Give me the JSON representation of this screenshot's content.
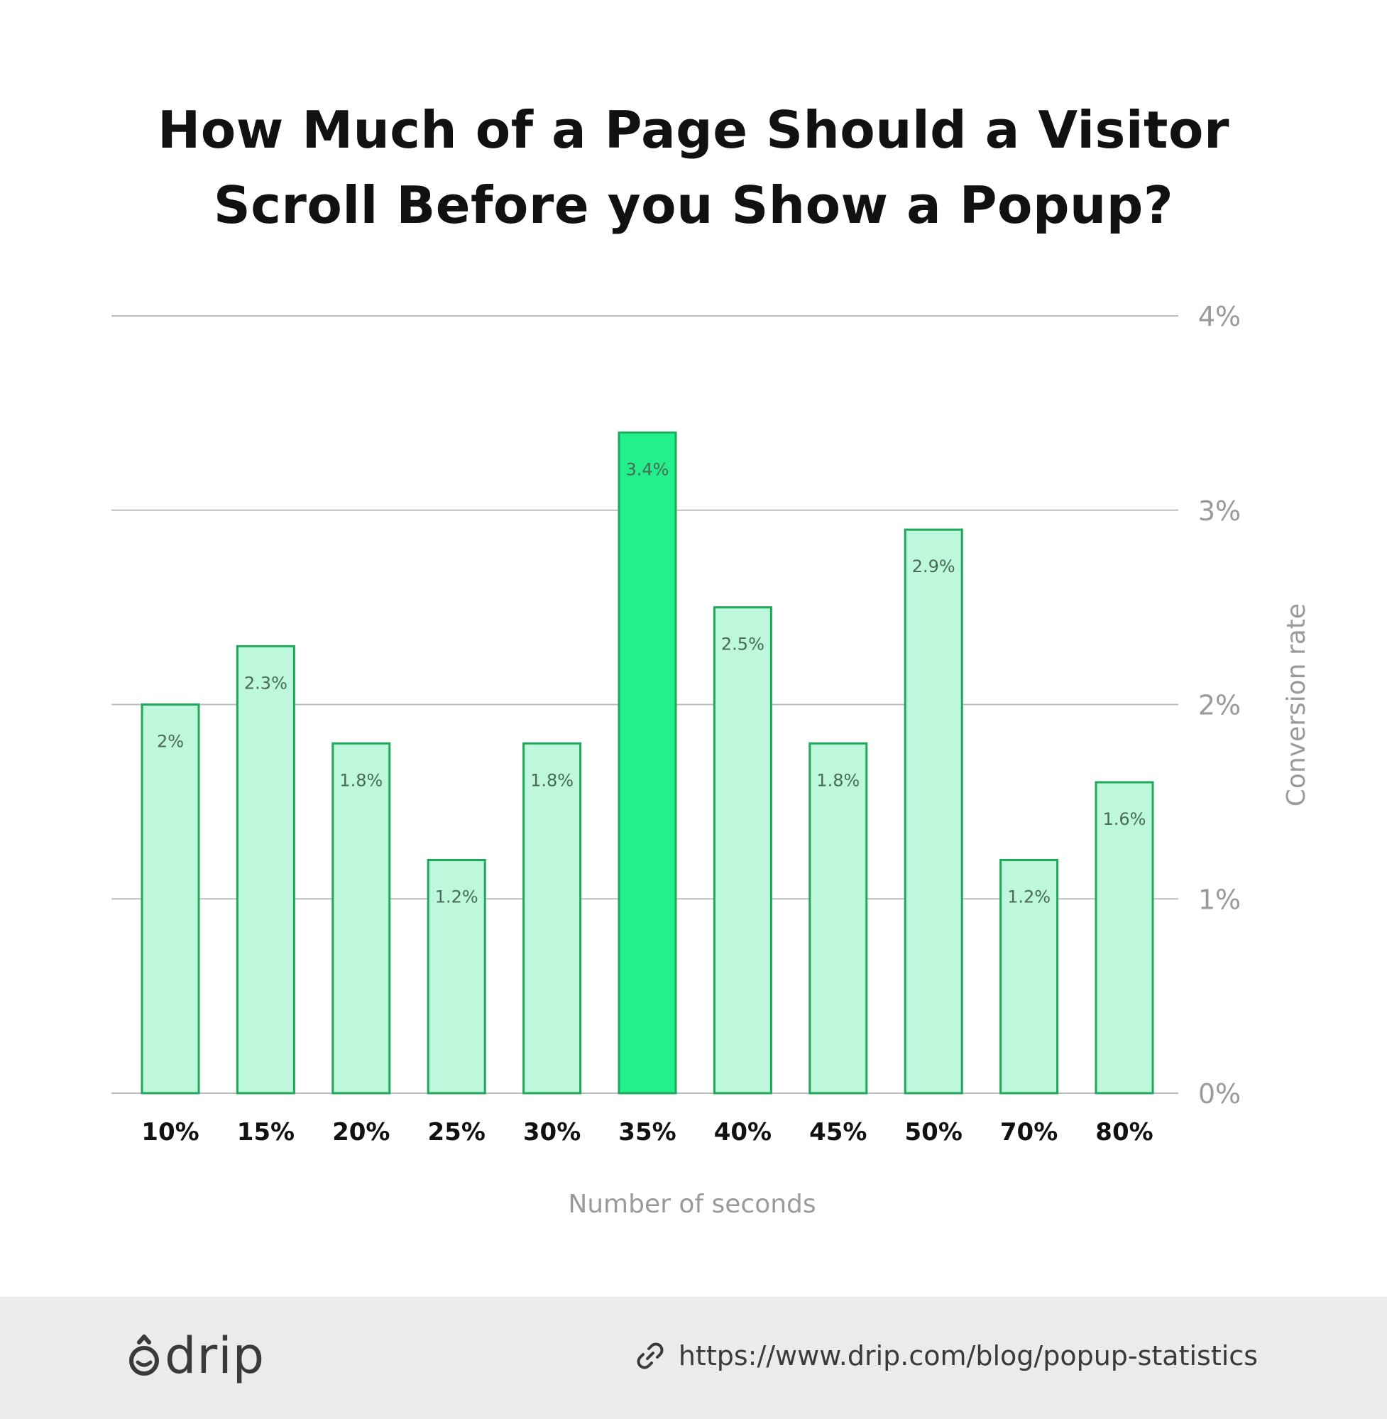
{
  "header": {
    "title_line1": "How Much of a Page Should a Visitor",
    "title_line2": "Scroll Before you Show a Popup?"
  },
  "chart_data": {
    "type": "bar",
    "title": "How Much of a Page Should a Visitor Scroll Before you Show a Popup?",
    "categories": [
      "10%",
      "15%",
      "20%",
      "25%",
      "30%",
      "35%",
      "40%",
      "45%",
      "50%",
      "70%",
      "80%"
    ],
    "values": [
      2.0,
      2.3,
      1.8,
      1.2,
      1.8,
      3.4,
      2.5,
      1.8,
      2.9,
      1.2,
      1.6
    ],
    "data_labels": [
      "2%",
      "2.3%",
      "1.8%",
      "1.2%",
      "1.8%",
      "3.4%",
      "2.5%",
      "1.8%",
      "2.9%",
      "1.2%",
      "1.6%"
    ],
    "highlight_index": 5,
    "xlabel": "Number of seconds",
    "ylabel": "Conversion rate",
    "ylim": [
      0,
      4
    ],
    "yticks": [
      0,
      1,
      2,
      3,
      4
    ],
    "ytick_labels": [
      "0%",
      "1%",
      "2%",
      "3%",
      "4%"
    ],
    "y_axis_position": "right",
    "grid": true,
    "legend": "none",
    "colors": {
      "bar_fill": "#bdf8dc",
      "bar_stroke": "#1fa85a",
      "highlight_fill": "#24f08b",
      "grid": "#bdbdbd",
      "tick_text": "#9a9a9a",
      "category_text": "#111111",
      "data_label_text": "#4a6a57"
    }
  },
  "footer": {
    "brand": "drip",
    "brand_icon": "drip-logo-icon",
    "link_icon": "link-icon",
    "url": "https://www.drip.com/blog/popup-statistics",
    "background": "#ebebeb"
  }
}
